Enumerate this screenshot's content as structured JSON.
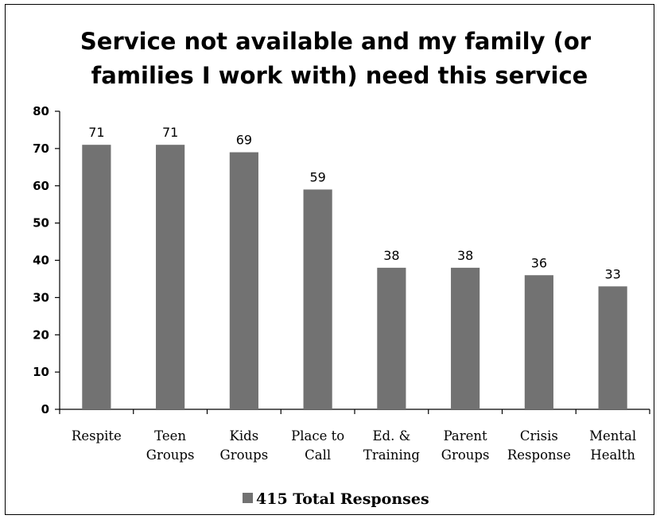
{
  "chart_data": {
    "type": "bar",
    "title_lines": [
      "Service not available and my family  (or",
      "families I work with) need this service"
    ],
    "categories": [
      [
        "Respite"
      ],
      [
        "Teen",
        "Groups"
      ],
      [
        "Kids",
        "Groups"
      ],
      [
        "Place to",
        "Call"
      ],
      [
        "Ed. &",
        "Training"
      ],
      [
        "Parent",
        "Groups"
      ],
      [
        "Crisis",
        "Response"
      ],
      [
        "Mental",
        "Health"
      ]
    ],
    "series": [
      {
        "name": "415 Total Responses",
        "values": [
          71,
          71,
          69,
          59,
          38,
          38,
          36,
          33
        ]
      }
    ],
    "ylim": [
      0,
      80
    ],
    "yticks": [
      0,
      10,
      20,
      30,
      40,
      50,
      60,
      70,
      80
    ],
    "data_labels": true,
    "legend_position": "bottom",
    "bar_color": "#727272",
    "grid": false
  }
}
